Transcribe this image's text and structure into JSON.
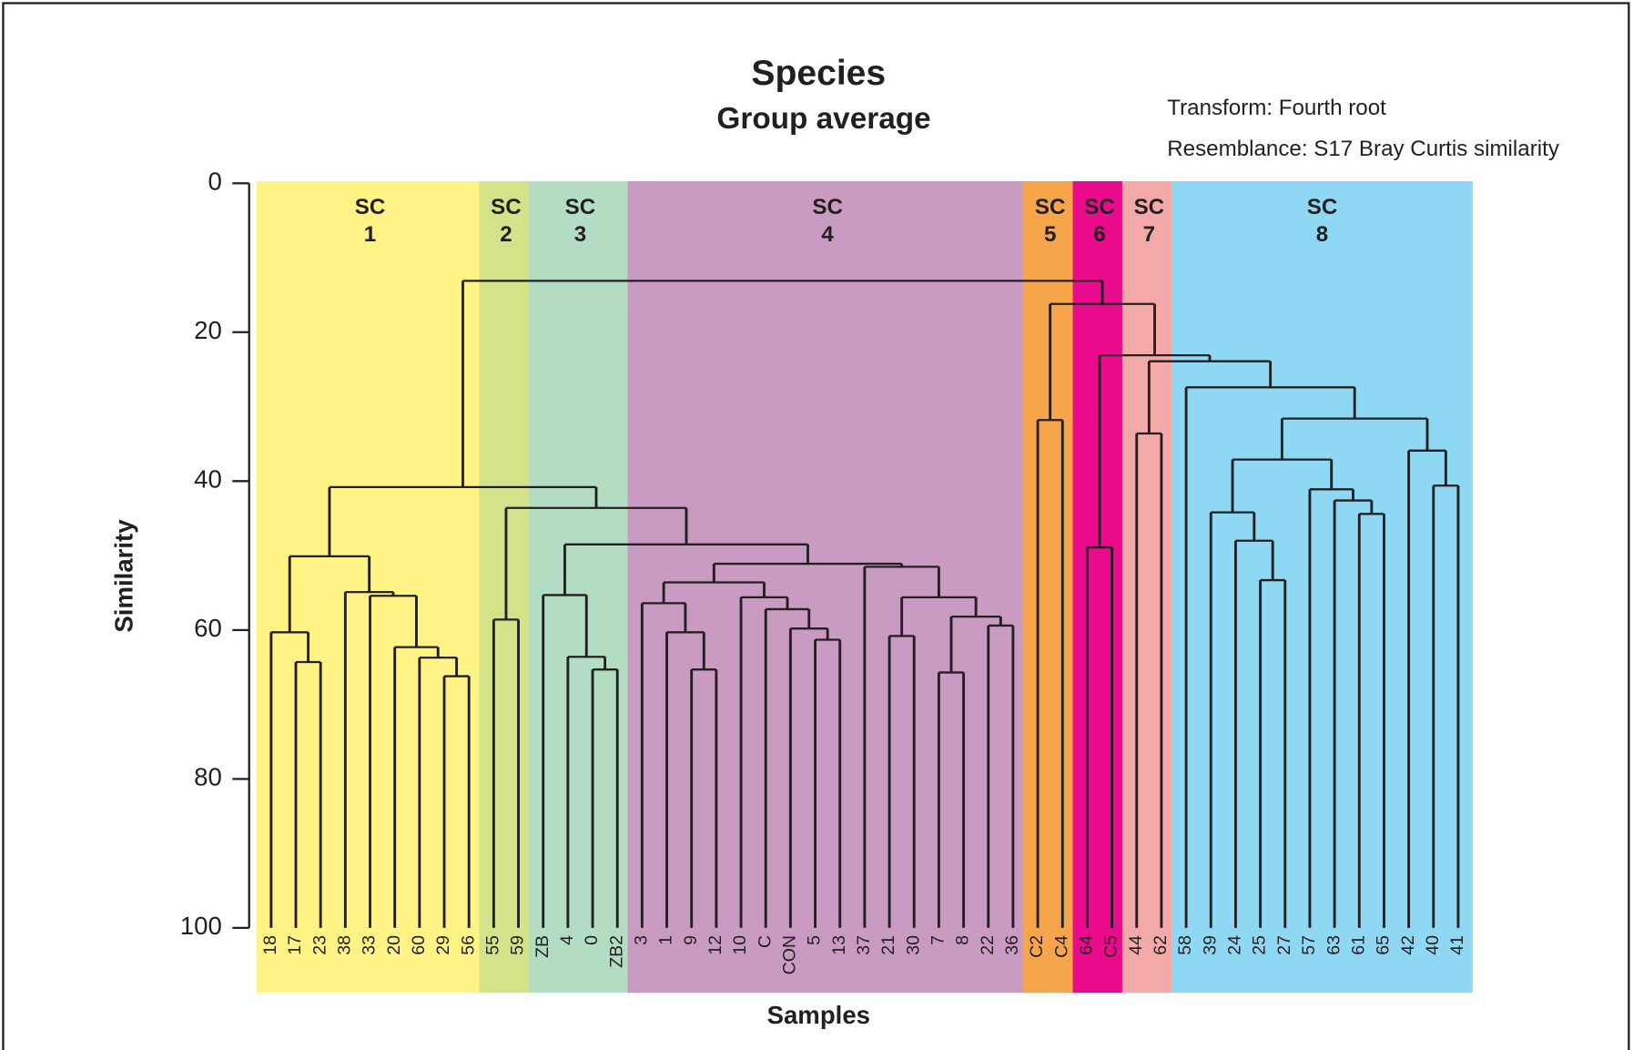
{
  "chart_data": {
    "type": "dendrogram",
    "title": "Species",
    "subtitle": "Group average",
    "annotations": [
      "Transform: Fourth root",
      "Resemblance: S17 Bray Curtis similarity"
    ],
    "x_label": "Samples",
    "y_label": "Similarity",
    "ylim": [
      100,
      0
    ],
    "yticks": [
      0,
      20,
      40,
      60,
      80,
      100
    ],
    "line_color": "#231f20",
    "tree": {
      "height": 13.1,
      "children": [
        {
          "height": 40.8,
          "children": [
            {
              "height": 50.1,
              "group": {
                "label": "SC",
                "number": "1",
                "color": "#fff385"
              },
              "children": [
                {
                  "height": 60.3,
                  "children": [
                    {
                      "label": "18"
                    },
                    {
                      "height": 64.3,
                      "children": [
                        {
                          "label": "17"
                        },
                        {
                          "label": "23"
                        }
                      ]
                    }
                  ]
                },
                {
                  "height": 54.9,
                  "children": [
                    {
                      "label": "38"
                    },
                    {
                      "height": 55.4,
                      "children": [
                        {
                          "label": "33"
                        },
                        {
                          "height": 62.3,
                          "children": [
                            {
                              "label": "20"
                            },
                            {
                              "height": 63.7,
                              "children": [
                                {
                                  "label": "60"
                                },
                                {
                                  "height": 66.2,
                                  "children": [
                                    {
                                      "label": "29"
                                    },
                                    {
                                      "label": "56"
                                    }
                                  ]
                                }
                              ]
                            }
                          ]
                        }
                      ]
                    }
                  ]
                }
              ]
            },
            {
              "height": 43.6,
              "children": [
                {
                  "height": 58.6,
                  "group": {
                    "label": "SC",
                    "number": "2",
                    "color": "#d4e38a"
                  },
                  "children": [
                    {
                      "label": "55"
                    },
                    {
                      "label": "59"
                    }
                  ]
                },
                {
                  "height": 48.5,
                  "children": [
                    {
                      "height": 55.3,
                      "group": {
                        "label": "SC",
                        "number": "3",
                        "color": "#b3ddc3"
                      },
                      "children": [
                        {
                          "label": "ZB"
                        },
                        {
                          "height": 63.6,
                          "children": [
                            {
                              "label": "4"
                            },
                            {
                              "height": 65.3,
                              "children": [
                                {
                                  "label": "0"
                                },
                                {
                                  "label": "ZB2"
                                }
                              ]
                            }
                          ]
                        }
                      ]
                    },
                    {
                      "height": 51.1,
                      "group": {
                        "label": "SC",
                        "number": "4",
                        "color": "#c99bc3"
                      },
                      "children": [
                        {
                          "height": 53.6,
                          "children": [
                            {
                              "height": 56.4,
                              "children": [
                                {
                                  "label": "3"
                                },
                                {
                                  "height": 60.3,
                                  "children": [
                                    {
                                      "label": "1"
                                    },
                                    {
                                      "height": 65.3,
                                      "children": [
                                        {
                                          "label": "9"
                                        },
                                        {
                                          "label": "12"
                                        }
                                      ]
                                    }
                                  ]
                                }
                              ]
                            },
                            {
                              "height": 55.6,
                              "children": [
                                {
                                  "label": "10"
                                },
                                {
                                  "height": 57.2,
                                  "children": [
                                    {
                                      "label": "C"
                                    },
                                    {
                                      "height": 59.8,
                                      "children": [
                                        {
                                          "label": "CON"
                                        },
                                        {
                                          "height": 61.3,
                                          "children": [
                                            {
                                              "label": "5"
                                            },
                                            {
                                              "label": "13"
                                            }
                                          ]
                                        }
                                      ]
                                    }
                                  ]
                                }
                              ]
                            }
                          ]
                        },
                        {
                          "height": 51.5,
                          "children": [
                            {
                              "label": "37"
                            },
                            {
                              "height": 55.6,
                              "children": [
                                {
                                  "height": 60.8,
                                  "children": [
                                    {
                                      "label": "21"
                                    },
                                    {
                                      "label": "30"
                                    }
                                  ]
                                },
                                {
                                  "height": 58.2,
                                  "children": [
                                    {
                                      "height": 65.7,
                                      "children": [
                                        {
                                          "label": "7"
                                        },
                                        {
                                          "label": "8"
                                        }
                                      ]
                                    },
                                    {
                                      "height": 59.4,
                                      "children": [
                                        {
                                          "label": "22"
                                        },
                                        {
                                          "label": "36"
                                        }
                                      ]
                                    }
                                  ]
                                }
                              ]
                            }
                          ]
                        }
                      ]
                    }
                  ]
                }
              ]
            }
          ]
        },
        {
          "height": 16.2,
          "children": [
            {
              "height": 31.8,
              "group": {
                "label": "SC",
                "number": "5",
                "color": "#f7a54a"
              },
              "children": [
                {
                  "label": "C2"
                },
                {
                  "label": "C4"
                }
              ]
            },
            {
              "height": 23.1,
              "children": [
                {
                  "height": 48.9,
                  "group": {
                    "label": "SC",
                    "number": "6",
                    "color": "#ea0a8c"
                  },
                  "children": [
                    {
                      "label": "64"
                    },
                    {
                      "label": "C5"
                    }
                  ]
                },
                {
                  "height": 23.9,
                  "children": [
                    {
                      "height": 33.6,
                      "group": {
                        "label": "SC",
                        "number": "7",
                        "color": "#f4a9a9"
                      },
                      "children": [
                        {
                          "label": "44"
                        },
                        {
                          "label": "62"
                        }
                      ]
                    },
                    {
                      "height": 27.4,
                      "group": {
                        "label": "SC",
                        "number": "8",
                        "color": "#8fd8f4"
                      },
                      "children": [
                        {
                          "label": "58"
                        },
                        {
                          "height": 31.6,
                          "children": [
                            {
                              "height": 37.1,
                              "children": [
                                {
                                  "height": 44.2,
                                  "children": [
                                    {
                                      "label": "39"
                                    },
                                    {
                                      "height": 48.0,
                                      "children": [
                                        {
                                          "label": "24"
                                        },
                                        {
                                          "height": 53.3,
                                          "children": [
                                            {
                                              "label": "25"
                                            },
                                            {
                                              "label": "27"
                                            }
                                          ]
                                        }
                                      ]
                                    }
                                  ]
                                },
                                {
                                  "height": 41.1,
                                  "children": [
                                    {
                                      "label": "57"
                                    },
                                    {
                                      "height": 42.6,
                                      "children": [
                                        {
                                          "label": "63"
                                        },
                                        {
                                          "height": 44.4,
                                          "children": [
                                            {
                                              "label": "61"
                                            },
                                            {
                                              "label": "65"
                                            }
                                          ]
                                        }
                                      ]
                                    }
                                  ]
                                }
                              ]
                            },
                            {
                              "height": 35.9,
                              "children": [
                                {
                                  "label": "42"
                                },
                                {
                                  "height": 40.6,
                                  "children": [
                                    {
                                      "label": "40"
                                    },
                                    {
                                      "label": "41"
                                    }
                                  ]
                                }
                              ]
                            }
                          ]
                        }
                      ]
                    }
                  ]
                }
              ]
            }
          ]
        }
      ]
    }
  }
}
